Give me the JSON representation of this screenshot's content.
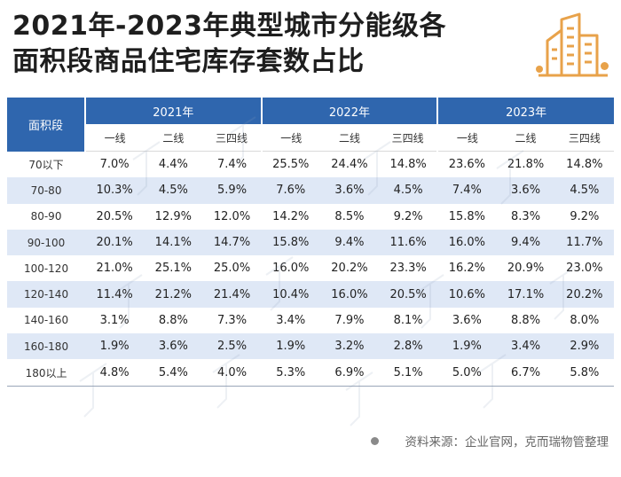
{
  "title": {
    "line1": "2021年-2023年典型城市分能级各",
    "line2": "面积段商品住宅库存套数占比"
  },
  "logo": {
    "icon": "city-buildings-icon",
    "color": "#e8a24a"
  },
  "table": {
    "corner_label": "面积段",
    "years": [
      "2021年",
      "2022年",
      "2023年"
    ],
    "tiers": [
      "一线",
      "二线",
      "三四线"
    ],
    "rows": [
      {
        "segment": "70以下",
        "values": [
          "7.0%",
          "4.4%",
          "7.4%",
          "25.5%",
          "24.4%",
          "14.8%",
          "23.6%",
          "21.8%",
          "14.8%"
        ]
      },
      {
        "segment": "70-80",
        "values": [
          "10.3%",
          "4.5%",
          "5.9%",
          "7.6%",
          "3.6%",
          "4.5%",
          "7.4%",
          "3.6%",
          "4.5%"
        ]
      },
      {
        "segment": "80-90",
        "values": [
          "20.5%",
          "12.9%",
          "12.0%",
          "14.2%",
          "8.5%",
          "9.2%",
          "15.8%",
          "8.3%",
          "9.2%"
        ]
      },
      {
        "segment": "90-100",
        "values": [
          "20.1%",
          "14.1%",
          "14.7%",
          "15.8%",
          "9.4%",
          "11.6%",
          "16.0%",
          "9.4%",
          "11.7%"
        ]
      },
      {
        "segment": "100-120",
        "values": [
          "21.0%",
          "25.1%",
          "25.0%",
          "16.0%",
          "20.2%",
          "23.3%",
          "16.2%",
          "20.9%",
          "23.0%"
        ]
      },
      {
        "segment": "120-140",
        "values": [
          "11.4%",
          "21.2%",
          "21.4%",
          "10.4%",
          "16.0%",
          "20.5%",
          "10.6%",
          "17.1%",
          "20.2%"
        ]
      },
      {
        "segment": "140-160",
        "values": [
          "3.1%",
          "8.8%",
          "7.3%",
          "3.4%",
          "7.9%",
          "8.1%",
          "3.6%",
          "8.8%",
          "8.0%"
        ]
      },
      {
        "segment": "160-180",
        "values": [
          "1.9%",
          "3.6%",
          "2.5%",
          "1.9%",
          "3.2%",
          "2.8%",
          "1.9%",
          "3.4%",
          "2.9%"
        ]
      },
      {
        "segment": "180以上",
        "values": [
          "4.8%",
          "5.4%",
          "4.0%",
          "5.3%",
          "6.9%",
          "5.1%",
          "5.0%",
          "6.7%",
          "5.8%"
        ]
      }
    ]
  },
  "source": {
    "text": "资料来源：企业官网，克而瑞物管整理"
  },
  "colors": {
    "header_blue": "#2f66ae",
    "stripe": "#dfe8f6"
  }
}
